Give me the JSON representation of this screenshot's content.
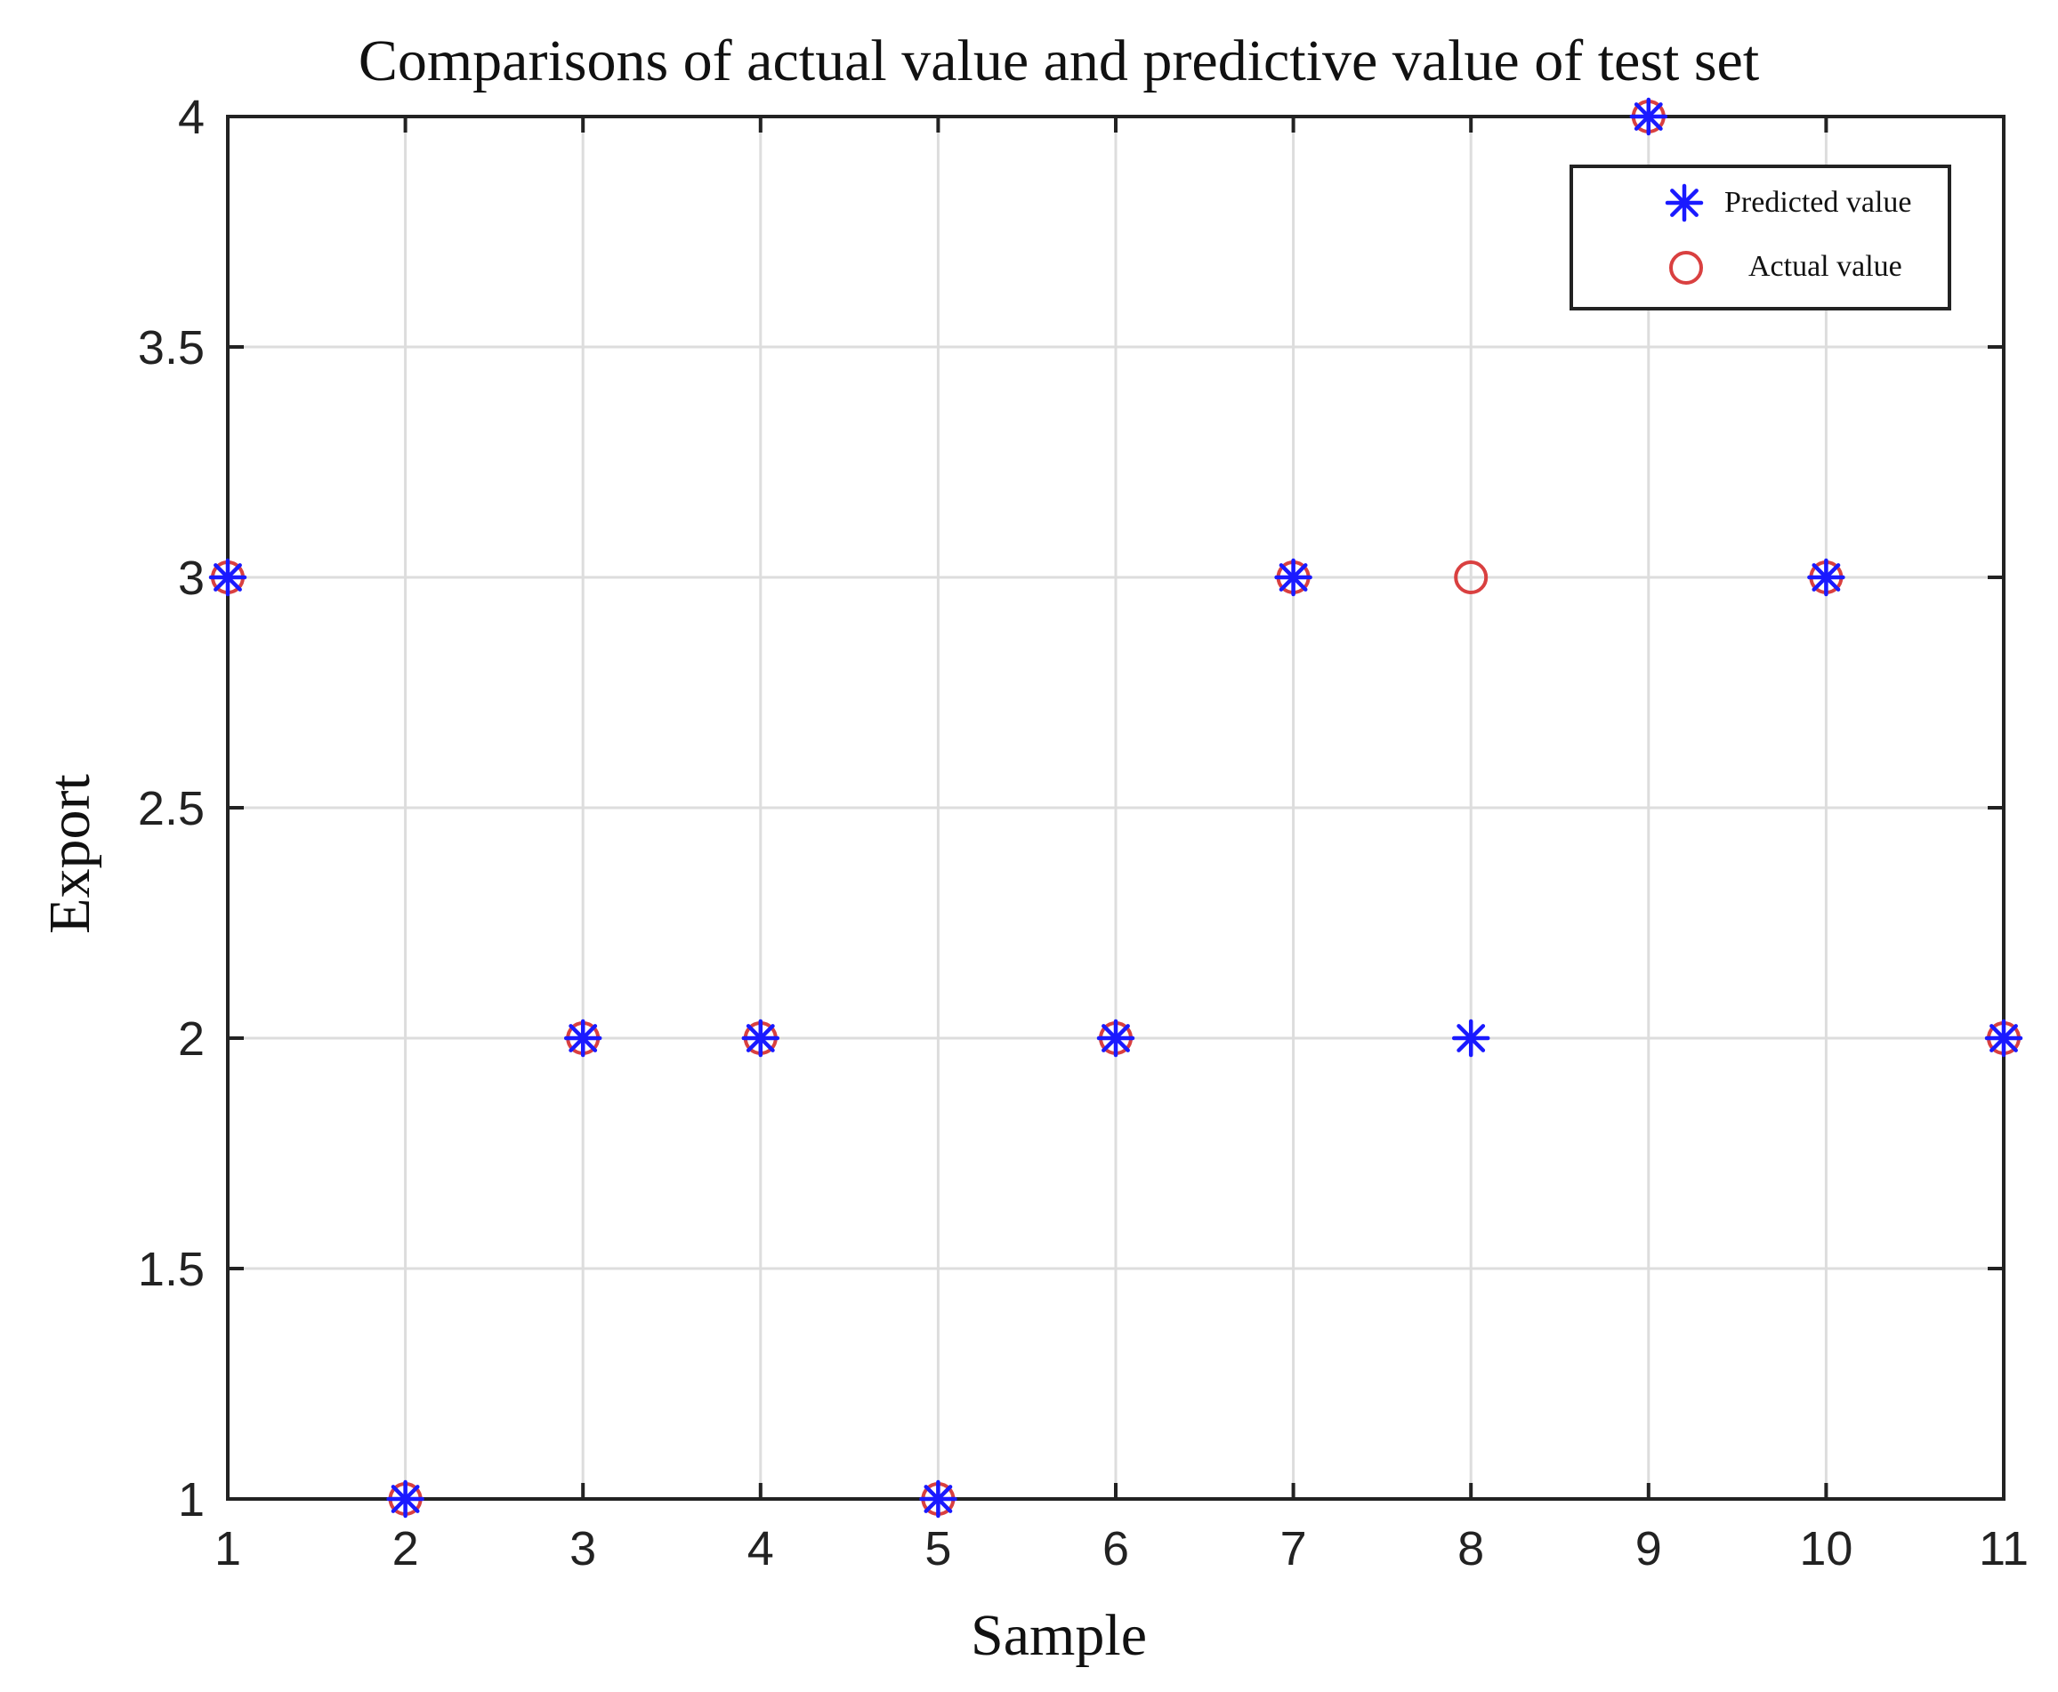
{
  "chart_data": {
    "type": "scatter",
    "title": "Comparisons of actual value and predictive value of test set",
    "xlabel": "Sample",
    "ylabel": "Export",
    "xlim": [
      1,
      11
    ],
    "ylim": [
      1,
      4
    ],
    "xticks": [
      "1",
      "2",
      "3",
      "4",
      "5",
      "6",
      "7",
      "8",
      "9",
      "10",
      "11"
    ],
    "yticks": [
      "1",
      "1.5",
      "2",
      "2.5",
      "3",
      "3.5",
      "4"
    ],
    "grid": true,
    "legend_position": "top-right",
    "series": [
      {
        "name": "Predicted value",
        "marker": "asterisk",
        "color": "#1a1aff",
        "x": [
          1,
          2,
          3,
          4,
          5,
          6,
          7,
          8,
          9,
          10,
          11
        ],
        "y": [
          3,
          1,
          2,
          2,
          1,
          2,
          3,
          2,
          4,
          3,
          2
        ]
      },
      {
        "name": "Actual value",
        "marker": "circle",
        "color": "#d94040",
        "x": [
          1,
          2,
          3,
          4,
          5,
          6,
          7,
          8,
          9,
          10,
          11
        ],
        "y": [
          3,
          1,
          2,
          2,
          1,
          2,
          3,
          3,
          4,
          3,
          2
        ]
      }
    ]
  }
}
